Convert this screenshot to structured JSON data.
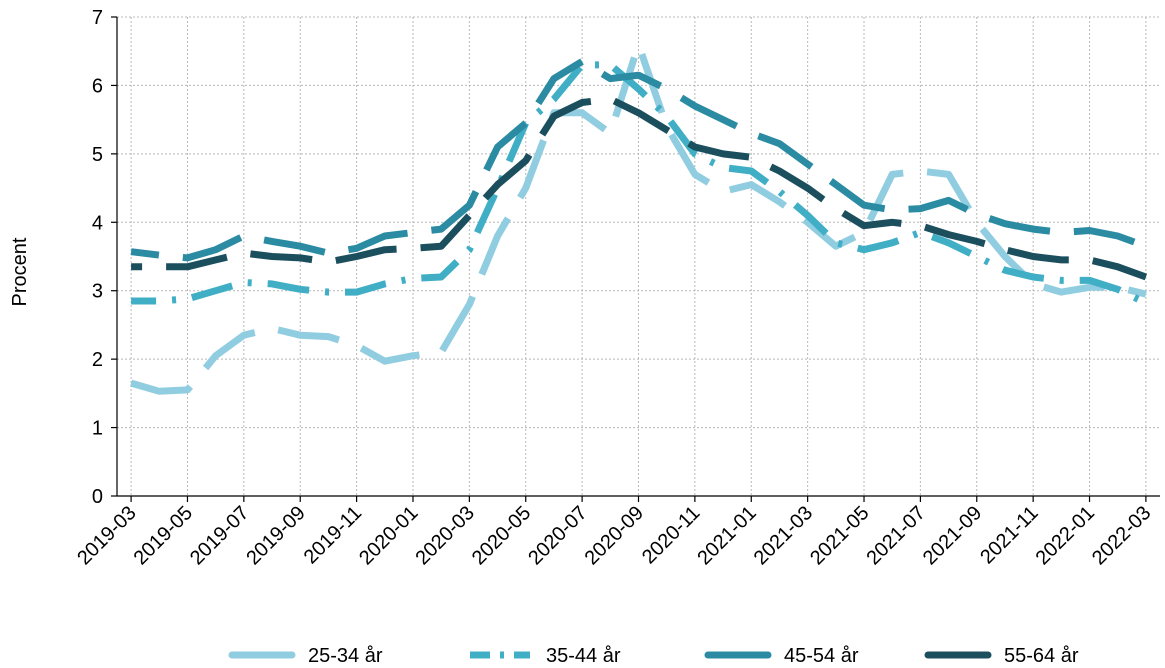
{
  "chart_data": {
    "type": "line",
    "title": "",
    "xlabel": "",
    "ylabel": "Procent",
    "ylim": [
      0,
      7
    ],
    "yticks": [
      "0",
      "1",
      "2",
      "3",
      "4",
      "5",
      "6",
      "7"
    ],
    "xlim": [
      "2019-03",
      "2022-03"
    ],
    "x": [
      "2019-03",
      "2019-04",
      "2019-05",
      "2019-06",
      "2019-07",
      "2019-08",
      "2019-09",
      "2019-10",
      "2019-11",
      "2019-12",
      "2020-01",
      "2020-02",
      "2020-03",
      "2020-04",
      "2020-05",
      "2020-06",
      "2020-07",
      "2020-08",
      "2020-09",
      "2020-10",
      "2020-11",
      "2020-12",
      "2021-01",
      "2021-02",
      "2021-03",
      "2021-04",
      "2021-05",
      "2021-06",
      "2021-07",
      "2021-08",
      "2021-09",
      "2021-10",
      "2021-11",
      "2021-12",
      "2022-01",
      "2022-02",
      "2022-03"
    ],
    "xtick_labels": [
      "2019-03",
      "2019-05",
      "2019-07",
      "2019-09",
      "2019-11",
      "2020-01",
      "2020-03",
      "2020-05",
      "2020-07",
      "2020-09",
      "2020-11",
      "2021-01",
      "2021-03",
      "2021-05",
      "2021-07",
      "2021-09",
      "2021-11",
      "2022-01",
      "2022-03"
    ],
    "legend_position": "bottom",
    "grid": true,
    "series": [
      {
        "name": "25-34 år",
        "color": "#90cde0",
        "dash": "long-dash",
        "values": [
          1.65,
          1.53,
          1.55,
          2.05,
          2.35,
          2.45,
          2.35,
          2.33,
          2.2,
          1.97,
          2.05,
          2.1,
          2.8,
          3.8,
          4.5,
          5.6,
          5.6,
          5.3,
          6.6,
          5.4,
          4.7,
          4.45,
          4.55,
          4.3,
          4.0,
          3.65,
          3.85,
          4.7,
          4.75,
          4.7,
          4.0,
          3.5,
          3.1,
          2.98,
          3.05,
          3.05,
          2.95
        ]
      },
      {
        "name": "35-44 år",
        "color": "#40afc6",
        "dash": "dash-dot",
        "values": [
          2.85,
          2.85,
          2.88,
          3.0,
          3.12,
          3.1,
          3.02,
          2.98,
          2.98,
          3.1,
          3.18,
          3.2,
          3.6,
          4.5,
          5.45,
          5.8,
          6.3,
          6.3,
          5.95,
          5.55,
          5.0,
          4.8,
          4.75,
          4.45,
          4.1,
          3.7,
          3.6,
          3.7,
          3.85,
          3.7,
          3.5,
          3.3,
          3.2,
          3.15,
          3.15,
          3.02,
          2.82
        ]
      },
      {
        "name": "45-54 år",
        "color": "#2a8ba3",
        "dash": "long-dash",
        "values": [
          3.57,
          3.52,
          3.48,
          3.6,
          3.8,
          3.72,
          3.65,
          3.55,
          3.62,
          3.8,
          3.85,
          3.9,
          4.25,
          5.1,
          5.45,
          6.1,
          6.35,
          6.1,
          6.15,
          5.95,
          5.7,
          5.5,
          5.3,
          5.15,
          4.85,
          4.55,
          4.25,
          4.18,
          4.2,
          4.32,
          4.12,
          3.98,
          3.9,
          3.85,
          3.88,
          3.8,
          3.65
        ]
      },
      {
        "name": "55-64 år",
        "color": "#1c4f5e",
        "dash": "long-dash",
        "values": [
          3.35,
          3.35,
          3.35,
          3.45,
          3.55,
          3.5,
          3.48,
          3.42,
          3.5,
          3.6,
          3.62,
          3.65,
          4.1,
          4.55,
          4.9,
          5.55,
          5.75,
          5.8,
          5.6,
          5.35,
          5.1,
          5.0,
          4.95,
          4.75,
          4.5,
          4.2,
          3.95,
          4.0,
          3.95,
          3.82,
          3.72,
          3.6,
          3.5,
          3.45,
          3.45,
          3.35,
          3.2
        ]
      }
    ]
  }
}
